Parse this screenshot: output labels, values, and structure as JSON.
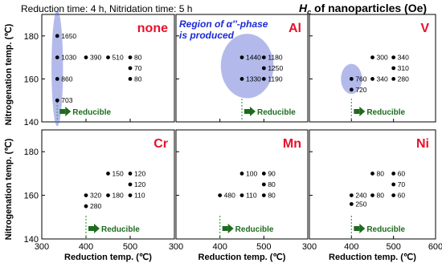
{
  "header": {
    "conditions": "Reduction time: 4 h,   Nitridation time: 5 h",
    "hc_symbol": "H",
    "hc_subscript": "c",
    "hc_rest": " of nanoparticles (Oe)"
  },
  "y_axis_label": "Nitrogenation temp. (℃)",
  "x_axis_label": "Reduction temp. (℃)",
  "reducible_label": "Reducible",
  "region_note": [
    "Region of α''-phase",
    "is produced"
  ],
  "x_ticks": [
    "300",
    "400",
    "500",
    "600"
  ],
  "colors": {
    "element_label": "#e8102a",
    "arrow": "#1e6b1e",
    "region": "#4b5bd0",
    "note": "#1c2ad8",
    "dash": "#3aa64a"
  },
  "chart_data": [
    {
      "type": "scatter",
      "title": "none",
      "row": 0,
      "col": 0,
      "xlim": [
        300,
        600
      ],
      "ylim": [
        140,
        190
      ],
      "y_ticks": [
        "140",
        "160",
        "180"
      ],
      "x_ticks": [],
      "reducible_x": 335,
      "region": {
        "cx": 335,
        "cy": 165,
        "rx": 13,
        "ry": 27
      },
      "points": [
        {
          "x": 335,
          "y": 180,
          "label": "1650"
        },
        {
          "x": 335,
          "y": 170,
          "label": "1030"
        },
        {
          "x": 335,
          "y": 160,
          "label": "860"
        },
        {
          "x": 335,
          "y": 150,
          "label": "703"
        },
        {
          "x": 400,
          "y": 170,
          "label": "390"
        },
        {
          "x": 450,
          "y": 170,
          "label": "510"
        },
        {
          "x": 500,
          "y": 170,
          "label": "80"
        },
        {
          "x": 500,
          "y": 165,
          "label": "70"
        },
        {
          "x": 500,
          "y": 160,
          "label": "80"
        }
      ]
    },
    {
      "type": "scatter",
      "title": "Al",
      "row": 0,
      "col": 1,
      "xlim": [
        300,
        600
      ],
      "ylim": [
        140,
        190
      ],
      "y_ticks": [],
      "x_ticks": [],
      "reducible_x": 450,
      "region": {
        "cx": 462,
        "cy": 166,
        "rx": 60,
        "ry": 15
      },
      "points": [
        {
          "x": 450,
          "y": 170,
          "label": "1440"
        },
        {
          "x": 450,
          "y": 160,
          "label": "1330"
        },
        {
          "x": 500,
          "y": 170,
          "label": "1180"
        },
        {
          "x": 500,
          "y": 165,
          "label": "1250"
        },
        {
          "x": 500,
          "y": 160,
          "label": "1190"
        }
      ]
    },
    {
      "type": "scatter",
      "title": "V",
      "row": 0,
      "col": 2,
      "xlim": [
        300,
        600
      ],
      "ylim": [
        140,
        190
      ],
      "y_ticks": [],
      "x_ticks": [],
      "reducible_x": 400,
      "region": {
        "cx": 400,
        "cy": 160,
        "rx": 25,
        "ry": 7
      },
      "points": [
        {
          "x": 400,
          "y": 160,
          "label": "760"
        },
        {
          "x": 400,
          "y": 155,
          "label": "720"
        },
        {
          "x": 450,
          "y": 170,
          "label": "300"
        },
        {
          "x": 450,
          "y": 160,
          "label": "340"
        },
        {
          "x": 500,
          "y": 170,
          "label": "340"
        },
        {
          "x": 500,
          "y": 165,
          "label": "310"
        },
        {
          "x": 500,
          "y": 160,
          "label": "280"
        }
      ]
    },
    {
      "type": "scatter",
      "title": "Cr",
      "row": 1,
      "col": 0,
      "xlim": [
        300,
        600
      ],
      "ylim": [
        140,
        190
      ],
      "y_ticks": [
        "140",
        "160",
        "180"
      ],
      "x_ticks": [
        "300",
        "400",
        "500"
      ],
      "reducible_x": 400,
      "points": [
        {
          "x": 400,
          "y": 160,
          "label": "320"
        },
        {
          "x": 400,
          "y": 155,
          "label": "280"
        },
        {
          "x": 450,
          "y": 170,
          "label": "150"
        },
        {
          "x": 450,
          "y": 160,
          "label": "180"
        },
        {
          "x": 500,
          "y": 170,
          "label": "120"
        },
        {
          "x": 500,
          "y": 165,
          "label": "120"
        },
        {
          "x": 500,
          "y": 160,
          "label": "110"
        }
      ]
    },
    {
      "type": "scatter",
      "title": "Mn",
      "row": 1,
      "col": 1,
      "xlim": [
        300,
        600
      ],
      "ylim": [
        140,
        190
      ],
      "y_ticks": [],
      "x_ticks": [
        "300",
        "400",
        "500"
      ],
      "reducible_x": 400,
      "points": [
        {
          "x": 400,
          "y": 160,
          "label": "480"
        },
        {
          "x": 450,
          "y": 170,
          "label": "100"
        },
        {
          "x": 450,
          "y": 160,
          "label": "110"
        },
        {
          "x": 500,
          "y": 170,
          "label": "90"
        },
        {
          "x": 500,
          "y": 165,
          "label": "80"
        },
        {
          "x": 500,
          "y": 160,
          "label": "80"
        }
      ]
    },
    {
      "type": "scatter",
      "title": "Ni",
      "row": 1,
      "col": 2,
      "xlim": [
        300,
        600
      ],
      "ylim": [
        140,
        190
      ],
      "y_ticks": [],
      "x_ticks": [
        "300",
        "400",
        "500",
        "600"
      ],
      "reducible_x": 400,
      "points": [
        {
          "x": 400,
          "y": 160,
          "label": "240"
        },
        {
          "x": 400,
          "y": 156,
          "label": "250"
        },
        {
          "x": 450,
          "y": 170,
          "label": "80"
        },
        {
          "x": 450,
          "y": 160,
          "label": "80"
        },
        {
          "x": 500,
          "y": 170,
          "label": "60"
        },
        {
          "x": 500,
          "y": 165,
          "label": "70"
        },
        {
          "x": 500,
          "y": 160,
          "label": "60"
        }
      ]
    }
  ]
}
